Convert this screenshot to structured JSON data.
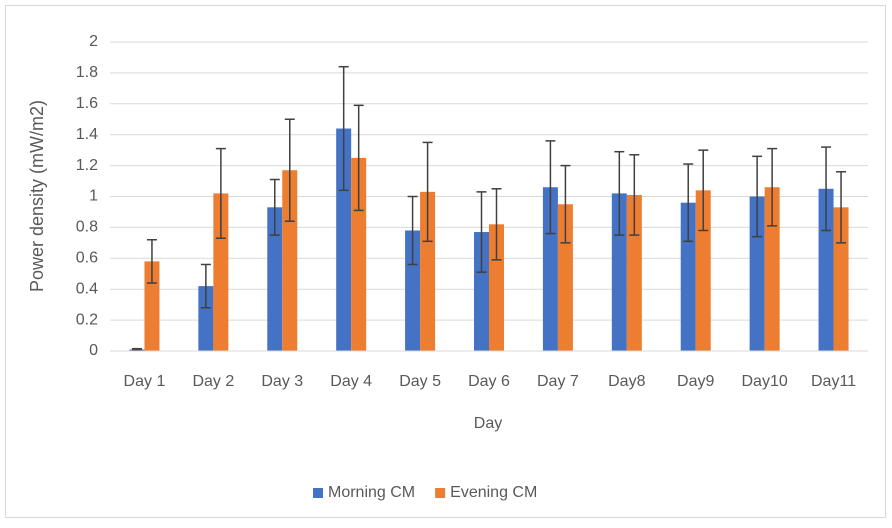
{
  "chart_data": {
    "type": "bar",
    "xlabel": "Day",
    "ylabel": "Power density (mW/m2)",
    "categories": [
      "Day 1",
      "Day 2",
      "Day 3",
      "Day 4",
      "Day 5",
      "Day 6",
      "Day 7",
      "Day8",
      "Day9",
      "Day10",
      "Day11"
    ],
    "series": [
      {
        "name": "Morning CM",
        "color": "#4472c4",
        "values": [
          0.01,
          0.42,
          0.93,
          1.44,
          0.78,
          0.77,
          1.06,
          1.02,
          0.96,
          1.0,
          1.05
        ],
        "errors": [
          0.005,
          0.14,
          0.18,
          0.4,
          0.22,
          0.26,
          0.3,
          0.27,
          0.25,
          0.26,
          0.27
        ]
      },
      {
        "name": "Evening CM",
        "color": "#ed7d31",
        "values": [
          0.58,
          1.02,
          1.17,
          1.25,
          1.03,
          0.82,
          0.95,
          1.01,
          1.04,
          1.06,
          0.93
        ],
        "errors": [
          0.14,
          0.29,
          0.33,
          0.34,
          0.32,
          0.23,
          0.25,
          0.26,
          0.26,
          0.25,
          0.23
        ]
      }
    ],
    "ylim": [
      0,
      2
    ],
    "yticks": [
      0,
      0.2,
      0.4,
      0.6,
      0.8,
      1,
      1.2,
      1.4,
      1.6,
      1.8,
      2
    ],
    "grid": true,
    "legend": "bottom"
  }
}
